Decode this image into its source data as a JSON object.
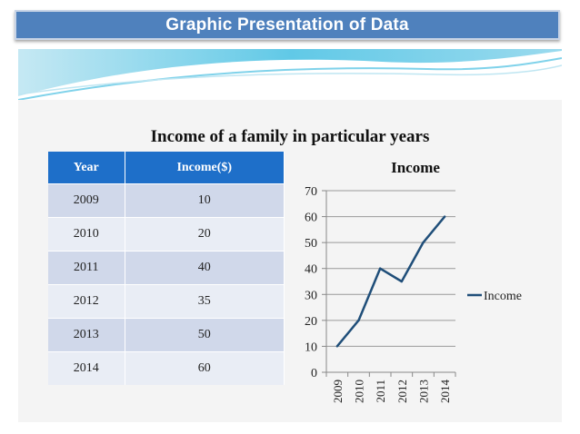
{
  "slide": {
    "title": "Graphic Presentation of Data",
    "heading": "Income of a family in particular years"
  },
  "table": {
    "headers": [
      "Year",
      "Income($)"
    ],
    "rows": [
      [
        "2009",
        "10"
      ],
      [
        "2010",
        "20"
      ],
      [
        "2011",
        "40"
      ],
      [
        "2012",
        "35"
      ],
      [
        "2013",
        "50"
      ],
      [
        "2014",
        "60"
      ]
    ]
  },
  "chart_data": {
    "type": "line",
    "title": "Income",
    "categories": [
      "2009",
      "2010",
      "2011",
      "2012",
      "2013",
      "2014"
    ],
    "series": [
      {
        "name": "Income",
        "values": [
          10,
          20,
          40,
          35,
          50,
          60
        ],
        "color": "#1f4e79"
      }
    ],
    "ylim": [
      0,
      70
    ],
    "yticks": [
      0,
      10,
      20,
      30,
      40,
      50,
      60,
      70
    ],
    "xlabel": "",
    "ylabel": "",
    "grid": true,
    "legend": "right"
  },
  "colors": {
    "title_bar": "#4f81bd",
    "table_header": "#1e6fc9",
    "line": "#1f4e79"
  }
}
